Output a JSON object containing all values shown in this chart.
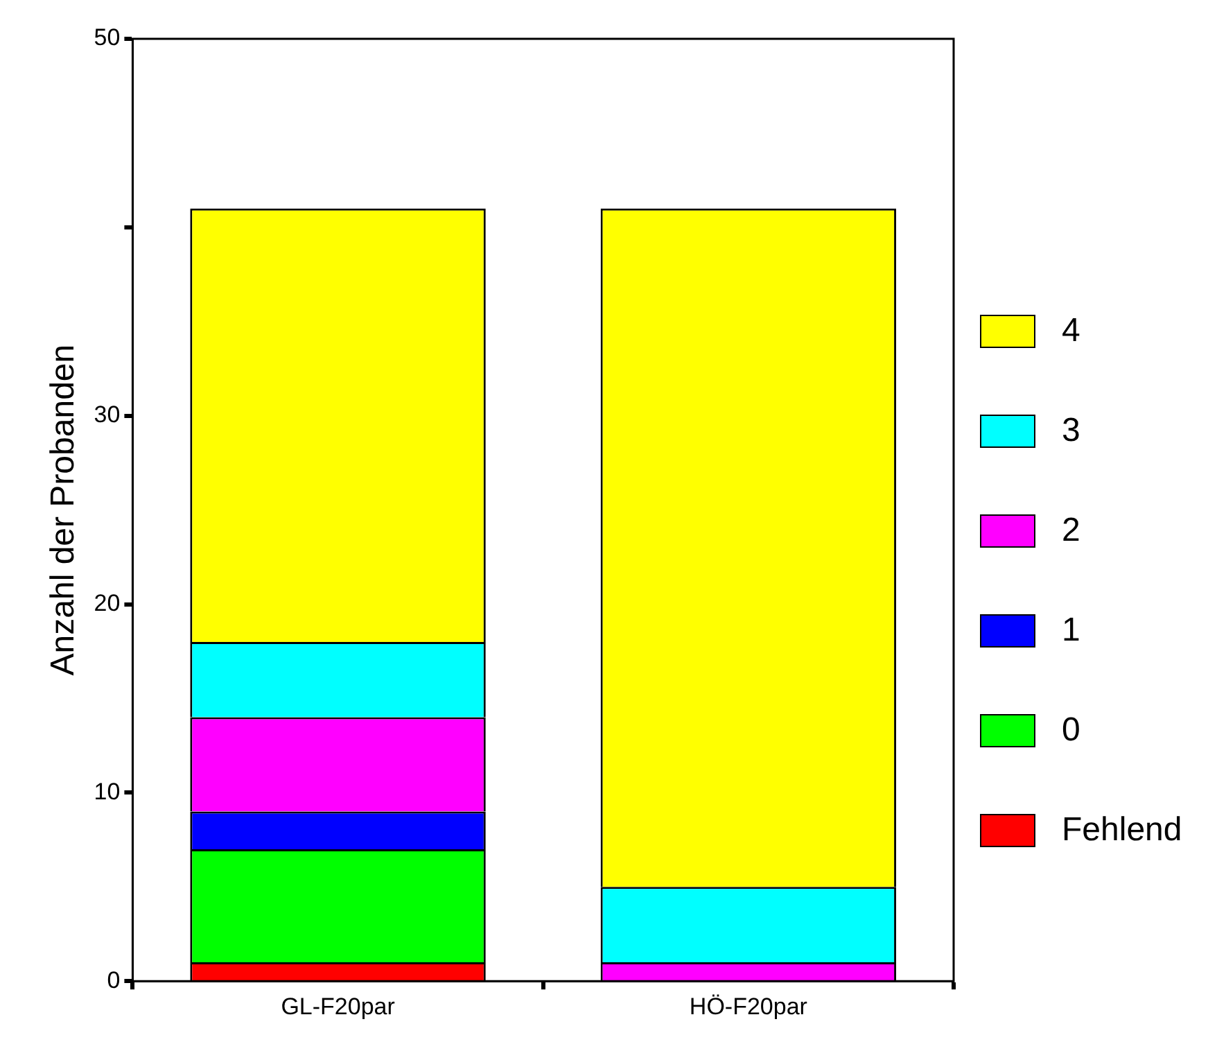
{
  "chart_data": {
    "type": "bar",
    "stacked": true,
    "ylabel": "Anzahl der Probanden",
    "categories": [
      "GL-F20par",
      "HÖ-F20par"
    ],
    "series": [
      {
        "name": "Fehlend",
        "color": "#ff0000",
        "values": [
          1,
          0
        ]
      },
      {
        "name": "0",
        "color": "#00ff00",
        "values": [
          6,
          0
        ]
      },
      {
        "name": "1",
        "color": "#0000ff",
        "values": [
          2,
          0
        ]
      },
      {
        "name": "2",
        "color": "#ff00ff",
        "values": [
          5,
          1
        ]
      },
      {
        "name": "3",
        "color": "#00ffff",
        "values": [
          4,
          4
        ]
      },
      {
        "name": "4",
        "color": "#ffff00",
        "values": [
          23,
          36
        ]
      }
    ],
    "ylim": [
      0,
      50
    ],
    "yticks": [
      0,
      10,
      20,
      30,
      {
        "value": 40,
        "label": null
      },
      50
    ],
    "grid": false,
    "legend": "right"
  }
}
